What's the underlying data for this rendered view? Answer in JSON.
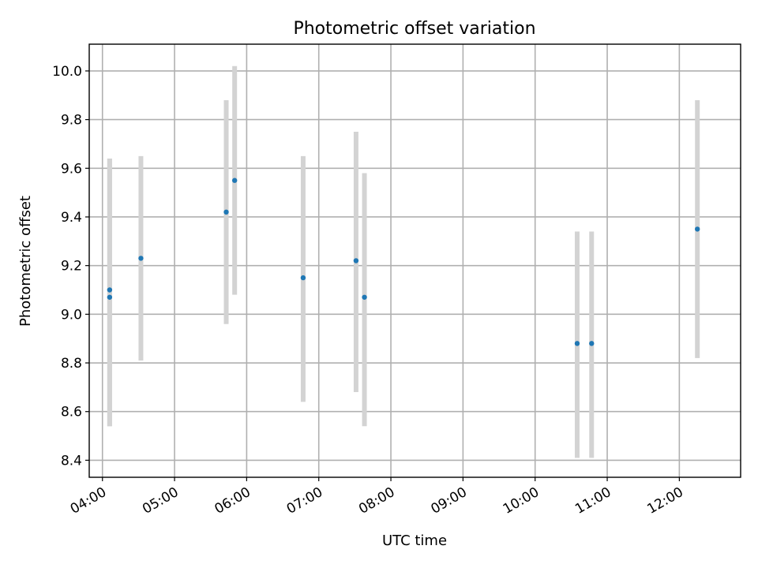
{
  "chart_data": {
    "type": "scatter",
    "title": "Photometric offset variation",
    "xlabel": "UTC time",
    "ylabel": "Photometric offset",
    "x_unit": "UTC time (HH:MM)",
    "xlim": [
      "03:49",
      "12:51"
    ],
    "ylim": [
      8.33,
      10.11
    ],
    "grid": true,
    "legend": "none",
    "x_ticks": [
      "04:00",
      "05:00",
      "06:00",
      "07:00",
      "08:00",
      "09:00",
      "10:00",
      "11:00",
      "12:00"
    ],
    "y_ticks": [
      "8.4",
      "8.6",
      "8.8",
      "9.0",
      "9.2",
      "9.4",
      "9.6",
      "9.8",
      "10.0"
    ],
    "x_tick_rotation_deg": 30,
    "colors": {
      "point": "#1f77b4",
      "errorbar": "#d3d3d3",
      "grid": "#b0b0b0"
    },
    "points": [
      {
        "x": "04:06",
        "y": 9.1,
        "yerr_low": 8.54,
        "yerr_high": 9.64
      },
      {
        "x": "04:06",
        "y": 9.07,
        "yerr_low": 8.54,
        "yerr_high": 9.64
      },
      {
        "x": "04:32",
        "y": 9.23,
        "yerr_low": 8.81,
        "yerr_high": 9.65
      },
      {
        "x": "05:43",
        "y": 9.42,
        "yerr_low": 8.96,
        "yerr_high": 9.88
      },
      {
        "x": "05:50",
        "y": 9.55,
        "yerr_low": 9.08,
        "yerr_high": 10.02
      },
      {
        "x": "06:47",
        "y": 9.15,
        "yerr_low": 8.64,
        "yerr_high": 9.65
      },
      {
        "x": "07:31",
        "y": 9.22,
        "yerr_low": 8.68,
        "yerr_high": 9.75
      },
      {
        "x": "07:38",
        "y": 9.07,
        "yerr_low": 8.54,
        "yerr_high": 9.58
      },
      {
        "x": "10:35",
        "y": 8.88,
        "yerr_low": 8.41,
        "yerr_high": 9.34
      },
      {
        "x": "10:47",
        "y": 8.88,
        "yerr_low": 8.41,
        "yerr_high": 9.34
      },
      {
        "x": "12:15",
        "y": 9.35,
        "yerr_low": 8.82,
        "yerr_high": 9.88
      }
    ]
  }
}
